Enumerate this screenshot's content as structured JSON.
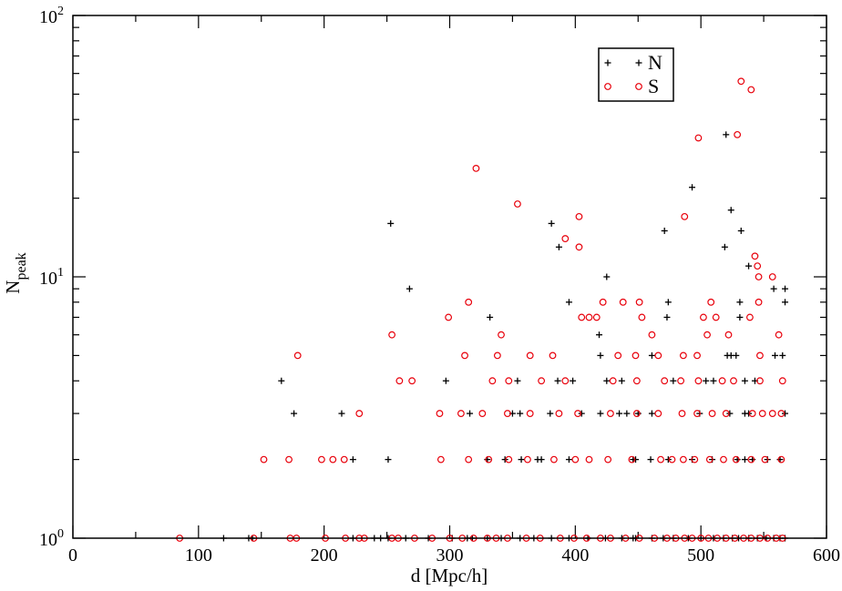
{
  "chart_data": {
    "type": "scatter",
    "title": "",
    "xlabel": "d [Mpc/h]",
    "ylabel": {
      "base": "N",
      "sub": "peak"
    },
    "xlim": [
      0,
      600
    ],
    "ylim": [
      1,
      100
    ],
    "y_scale": "log",
    "grid": false,
    "legend_position": "top-right",
    "x_ticks": [
      {
        "value": 0,
        "label": "0"
      },
      {
        "value": 100,
        "label": "100"
      },
      {
        "value": 200,
        "label": "200"
      },
      {
        "value": 300,
        "label": "300"
      },
      {
        "value": 400,
        "label": "400"
      },
      {
        "value": 500,
        "label": "500"
      },
      {
        "value": 600,
        "label": "600"
      }
    ],
    "y_ticks": [
      {
        "value": 1,
        "base": "10",
        "exp": "0"
      },
      {
        "value": 10,
        "base": "10",
        "exp": "1"
      },
      {
        "value": 100,
        "base": "10",
        "exp": "2"
      }
    ],
    "series": [
      {
        "name": "N",
        "marker": "plus",
        "color": "#000000",
        "points": [
          [
            120,
            1
          ],
          [
            140,
            1
          ],
          [
            143,
            1
          ],
          [
            223,
            1
          ],
          [
            240,
            1
          ],
          [
            245,
            1
          ],
          [
            251,
            1
          ],
          [
            265,
            1
          ],
          [
            283,
            1
          ],
          [
            302,
            1
          ],
          [
            314,
            1
          ],
          [
            318,
            1
          ],
          [
            330,
            1
          ],
          [
            341,
            1
          ],
          [
            356,
            1
          ],
          [
            367,
            1
          ],
          [
            381,
            1
          ],
          [
            395,
            1
          ],
          [
            410,
            1
          ],
          [
            424,
            1
          ],
          [
            437,
            1
          ],
          [
            446,
            1
          ],
          [
            448,
            1
          ],
          [
            461,
            1
          ],
          [
            470,
            1
          ],
          [
            478,
            1
          ],
          [
            490,
            1
          ],
          [
            500,
            1
          ],
          [
            510,
            1
          ],
          [
            518,
            1
          ],
          [
            525,
            1
          ],
          [
            530,
            1
          ],
          [
            538,
            1
          ],
          [
            545,
            1
          ],
          [
            552,
            1
          ],
          [
            558,
            1
          ],
          [
            563,
            1
          ],
          [
            567,
            1
          ],
          [
            223,
            2
          ],
          [
            251,
            2
          ],
          [
            330,
            2
          ],
          [
            344,
            2
          ],
          [
            357,
            2
          ],
          [
            370,
            2
          ],
          [
            373,
            2
          ],
          [
            395,
            2
          ],
          [
            446,
            2
          ],
          [
            448,
            2
          ],
          [
            460,
            2
          ],
          [
            474,
            2
          ],
          [
            493,
            2
          ],
          [
            509,
            2
          ],
          [
            529,
            2
          ],
          [
            535,
            2
          ],
          [
            541,
            2
          ],
          [
            553,
            2
          ],
          [
            563,
            2
          ],
          [
            176,
            3
          ],
          [
            214,
            3
          ],
          [
            316,
            3
          ],
          [
            350,
            3
          ],
          [
            356,
            3
          ],
          [
            380,
            3
          ],
          [
            405,
            3
          ],
          [
            420,
            3
          ],
          [
            435,
            3
          ],
          [
            441,
            3
          ],
          [
            450,
            3
          ],
          [
            461,
            3
          ],
          [
            499,
            3
          ],
          [
            523,
            3
          ],
          [
            535,
            3
          ],
          [
            538,
            3
          ],
          [
            567,
            3
          ],
          [
            166,
            4
          ],
          [
            297,
            4
          ],
          [
            354,
            4
          ],
          [
            386,
            4
          ],
          [
            398,
            4
          ],
          [
            425,
            4
          ],
          [
            437,
            4
          ],
          [
            478,
            4
          ],
          [
            504,
            4
          ],
          [
            510,
            4
          ],
          [
            535,
            4
          ],
          [
            543,
            4
          ],
          [
            420,
            5
          ],
          [
            461,
            5
          ],
          [
            521,
            5
          ],
          [
            524,
            5
          ],
          [
            528,
            5
          ],
          [
            559,
            5
          ],
          [
            565,
            5
          ],
          [
            419,
            6
          ],
          [
            332,
            7
          ],
          [
            473,
            7
          ],
          [
            531,
            7
          ],
          [
            395,
            8
          ],
          [
            474,
            8
          ],
          [
            531,
            8
          ],
          [
            567,
            8
          ],
          [
            558,
            9
          ],
          [
            567,
            9
          ],
          [
            268,
            9
          ],
          [
            425,
            10
          ],
          [
            538,
            11
          ],
          [
            387,
            13
          ],
          [
            519,
            13
          ],
          [
            253,
            16
          ],
          [
            381,
            16
          ],
          [
            471,
            15
          ],
          [
            532,
            15
          ],
          [
            524,
            18
          ],
          [
            493,
            22
          ],
          [
            520,
            35
          ]
        ]
      },
      {
        "name": "S",
        "marker": "circle",
        "color": "#e8000b",
        "points": [
          [
            85,
            1
          ],
          [
            144,
            1
          ],
          [
            173,
            1
          ],
          [
            178,
            1
          ],
          [
            201,
            1
          ],
          [
            217,
            1
          ],
          [
            228,
            1
          ],
          [
            232,
            1
          ],
          [
            254,
            1
          ],
          [
            259,
            1
          ],
          [
            272,
            1
          ],
          [
            286,
            1
          ],
          [
            300,
            1
          ],
          [
            310,
            1
          ],
          [
            319,
            1
          ],
          [
            330,
            1
          ],
          [
            337,
            1
          ],
          [
            346,
            1
          ],
          [
            361,
            1
          ],
          [
            372,
            1
          ],
          [
            388,
            1
          ],
          [
            399,
            1
          ],
          [
            409,
            1
          ],
          [
            420,
            1
          ],
          [
            428,
            1
          ],
          [
            440,
            1
          ],
          [
            451,
            1
          ],
          [
            463,
            1
          ],
          [
            473,
            1
          ],
          [
            480,
            1
          ],
          [
            487,
            1
          ],
          [
            493,
            1
          ],
          [
            500,
            1
          ],
          [
            506,
            1
          ],
          [
            513,
            1
          ],
          [
            520,
            1
          ],
          [
            527,
            1
          ],
          [
            534,
            1
          ],
          [
            540,
            1
          ],
          [
            547,
            1
          ],
          [
            553,
            1
          ],
          [
            560,
            1
          ],
          [
            565,
            1
          ],
          [
            152,
            2
          ],
          [
            172,
            2
          ],
          [
            198,
            2
          ],
          [
            207,
            2
          ],
          [
            216,
            2
          ],
          [
            293,
            2
          ],
          [
            315,
            2
          ],
          [
            331,
            2
          ],
          [
            347,
            2
          ],
          [
            362,
            2
          ],
          [
            383,
            2
          ],
          [
            400,
            2
          ],
          [
            411,
            2
          ],
          [
            426,
            2
          ],
          [
            445,
            2
          ],
          [
            468,
            2
          ],
          [
            477,
            2
          ],
          [
            486,
            2
          ],
          [
            495,
            2
          ],
          [
            507,
            2
          ],
          [
            518,
            2
          ],
          [
            528,
            2
          ],
          [
            540,
            2
          ],
          [
            551,
            2
          ],
          [
            564,
            2
          ],
          [
            228,
            3
          ],
          [
            292,
            3
          ],
          [
            309,
            3
          ],
          [
            326,
            3
          ],
          [
            346,
            3
          ],
          [
            364,
            3
          ],
          [
            387,
            3
          ],
          [
            402,
            3
          ],
          [
            428,
            3
          ],
          [
            449,
            3
          ],
          [
            466,
            3
          ],
          [
            485,
            3
          ],
          [
            497,
            3
          ],
          [
            509,
            3
          ],
          [
            520,
            3
          ],
          [
            541,
            3
          ],
          [
            549,
            3
          ],
          [
            557,
            3
          ],
          [
            564,
            3
          ],
          [
            260,
            4
          ],
          [
            270,
            4
          ],
          [
            334,
            4
          ],
          [
            347,
            4
          ],
          [
            373,
            4
          ],
          [
            392,
            4
          ],
          [
            430,
            4
          ],
          [
            449,
            4
          ],
          [
            471,
            4
          ],
          [
            484,
            4
          ],
          [
            498,
            4
          ],
          [
            517,
            4
          ],
          [
            526,
            4
          ],
          [
            547,
            4
          ],
          [
            565,
            4
          ],
          [
            179,
            5
          ],
          [
            312,
            5
          ],
          [
            338,
            5
          ],
          [
            364,
            5
          ],
          [
            382,
            5
          ],
          [
            434,
            5
          ],
          [
            448,
            5
          ],
          [
            466,
            5
          ],
          [
            486,
            5
          ],
          [
            497,
            5
          ],
          [
            547,
            5
          ],
          [
            254,
            6
          ],
          [
            341,
            6
          ],
          [
            461,
            6
          ],
          [
            505,
            6
          ],
          [
            522,
            6
          ],
          [
            562,
            6
          ],
          [
            299,
            7
          ],
          [
            405,
            7
          ],
          [
            411,
            7
          ],
          [
            417,
            7
          ],
          [
            453,
            7
          ],
          [
            502,
            7
          ],
          [
            512,
            7
          ],
          [
            539,
            7
          ],
          [
            315,
            8
          ],
          [
            422,
            8
          ],
          [
            438,
            8
          ],
          [
            451,
            8
          ],
          [
            508,
            8
          ],
          [
            546,
            8
          ],
          [
            557,
            10
          ],
          [
            546,
            10
          ],
          [
            545,
            11
          ],
          [
            543,
            12
          ],
          [
            403,
            13
          ],
          [
            392,
            14
          ],
          [
            403,
            17
          ],
          [
            487,
            17
          ],
          [
            354,
            19
          ],
          [
            321,
            26
          ],
          [
            498,
            34
          ],
          [
            529,
            35
          ],
          [
            540,
            52
          ],
          [
            532,
            56
          ]
        ]
      }
    ]
  },
  "legend": {
    "entries": [
      {
        "label": "N",
        "marker": "plus",
        "color": "#000000"
      },
      {
        "label": "S",
        "marker": "circle",
        "color": "#e8000b"
      }
    ]
  }
}
